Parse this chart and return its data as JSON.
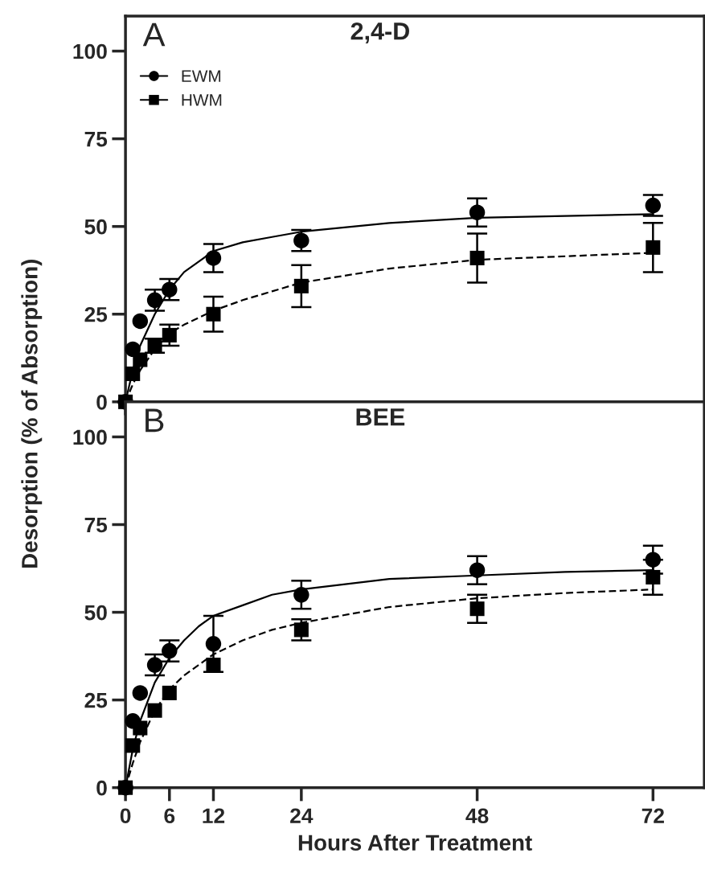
{
  "chart_data": [
    {
      "type": "scatter",
      "title": "2,4-D",
      "ylabel": "Desorption (% of Absorption)",
      "annotations": [
        "A"
      ],
      "legend": "top left",
      "tick_labels": "y",
      "xlim": [
        0,
        79
      ],
      "ylim": [
        0,
        110
      ],
      "xticks": [
        0,
        6,
        12,
        24,
        48,
        72
      ],
      "yticks": [
        0,
        25,
        50,
        75,
        100
      ],
      "grid": false,
      "x": [
        0,
        1,
        2,
        4,
        6,
        12,
        24,
        48,
        72
      ],
      "series": [
        {
          "name": "EWM",
          "color": "#000000",
          "marker": "circle",
          "values": [
            0,
            15,
            23,
            29,
            32,
            41,
            46,
            54,
            56
          ],
          "errors": [
            null,
            null,
            null,
            3,
            3,
            4,
            3,
            4,
            3
          ]
        },
        {
          "name": "HWM",
          "color": "#000000",
          "marker": "square",
          "values": [
            0,
            8,
            12,
            16,
            19,
            25,
            33,
            41,
            44
          ],
          "errors": [
            null,
            null,
            null,
            2,
            3,
            5,
            6,
            7,
            7
          ]
        },
        {
          "type": "line",
          "color": "#000000",
          "line_style": "solid",
          "x": [
            0,
            1,
            2,
            4,
            6,
            8,
            10,
            12,
            16,
            20,
            24,
            36,
            48,
            60,
            72
          ],
          "values": [
            0,
            9,
            16,
            25,
            32,
            37,
            40,
            43,
            45.5,
            47,
            48.5,
            51,
            52.5,
            53,
            53.5
          ]
        },
        {
          "type": "line",
          "color": "#000000",
          "line_style": "dashed",
          "x": [
            0,
            1,
            2,
            4,
            6,
            8,
            10,
            12,
            16,
            20,
            24,
            36,
            48,
            60,
            72
          ],
          "values": [
            0,
            5,
            9,
            15,
            19.5,
            22,
            24,
            26,
            29,
            31.5,
            34,
            38,
            40.5,
            41.5,
            42.5
          ]
        }
      ]
    },
    {
      "type": "scatter",
      "title": "BEE",
      "xlabel": "Hours After Treatment",
      "annotations": [
        "B"
      ],
      "xlim": [
        0,
        79
      ],
      "ylim": [
        0,
        110
      ],
      "xticks": [
        0,
        6,
        12,
        24,
        48,
        72
      ],
      "yticks": [
        0,
        25,
        50,
        75,
        100
      ],
      "grid": false,
      "x": [
        0,
        1,
        2,
        4,
        6,
        12,
        24,
        48,
        72
      ],
      "series": [
        {
          "color": "#000000",
          "marker": "circle",
          "values": [
            0,
            19,
            27,
            35,
            39,
            41,
            55,
            62,
            65
          ],
          "errors": [
            null,
            null,
            null,
            3,
            3,
            8,
            4,
            4,
            4
          ]
        },
        {
          "color": "#000000",
          "marker": "square",
          "values": [
            0,
            12,
            17,
            22,
            27,
            35,
            45,
            51,
            60
          ],
          "errors": [
            null,
            null,
            null,
            null,
            null,
            null,
            3,
            4,
            5
          ]
        },
        {
          "type": "line",
          "color": "#000000",
          "line_style": "solid",
          "x": [
            0,
            1,
            2,
            4,
            6,
            8,
            10,
            12,
            16,
            20,
            24,
            36,
            48,
            60,
            72
          ],
          "values": [
            0,
            11,
            19,
            30,
            37,
            42,
            46,
            49,
            52,
            55,
            56.5,
            59.5,
            60.5,
            61.5,
            62
          ]
        },
        {
          "type": "line",
          "color": "#000000",
          "line_style": "dashed",
          "x": [
            0,
            1,
            2,
            4,
            6,
            8,
            10,
            12,
            16,
            20,
            24,
            36,
            48,
            60,
            72
          ],
          "values": [
            0,
            7,
            13,
            22,
            28,
            32,
            35,
            38,
            42,
            45,
            47,
            51.5,
            54,
            55.5,
            56.5
          ]
        }
      ]
    }
  ]
}
